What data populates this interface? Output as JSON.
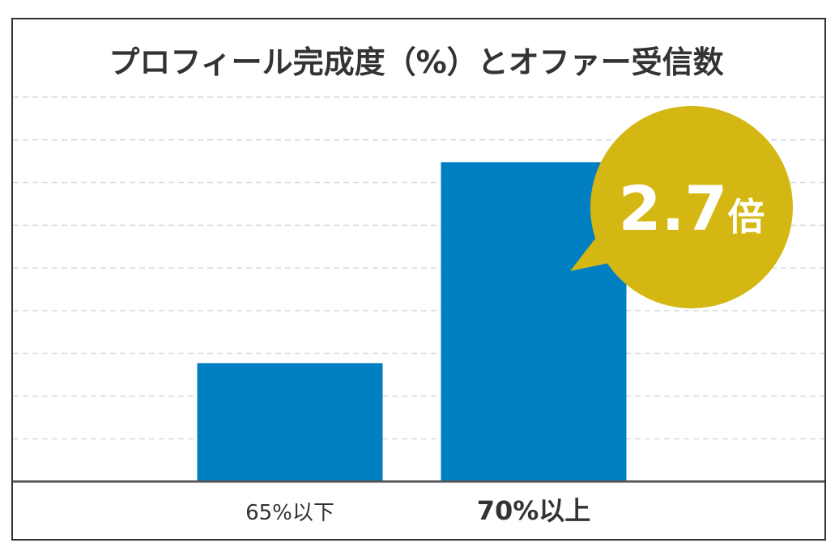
{
  "chart_data": {
    "type": "bar",
    "title": "プロフィール完成度（%）とオファー受信数",
    "categories": [
      "65%以下",
      "70%以上"
    ],
    "values": [
      1,
      2.7
    ],
    "xlabel": "",
    "ylabel": "",
    "ylim": [
      0,
      3.25
    ],
    "grid": true,
    "annotation": {
      "text": "2.7倍",
      "value": "2.7",
      "unit": "倍"
    },
    "colors": {
      "bar": "#007fc3",
      "bubble": "#d4b712",
      "grid": "#d9d9d9",
      "axis": "#555555",
      "text": "#333333"
    }
  }
}
